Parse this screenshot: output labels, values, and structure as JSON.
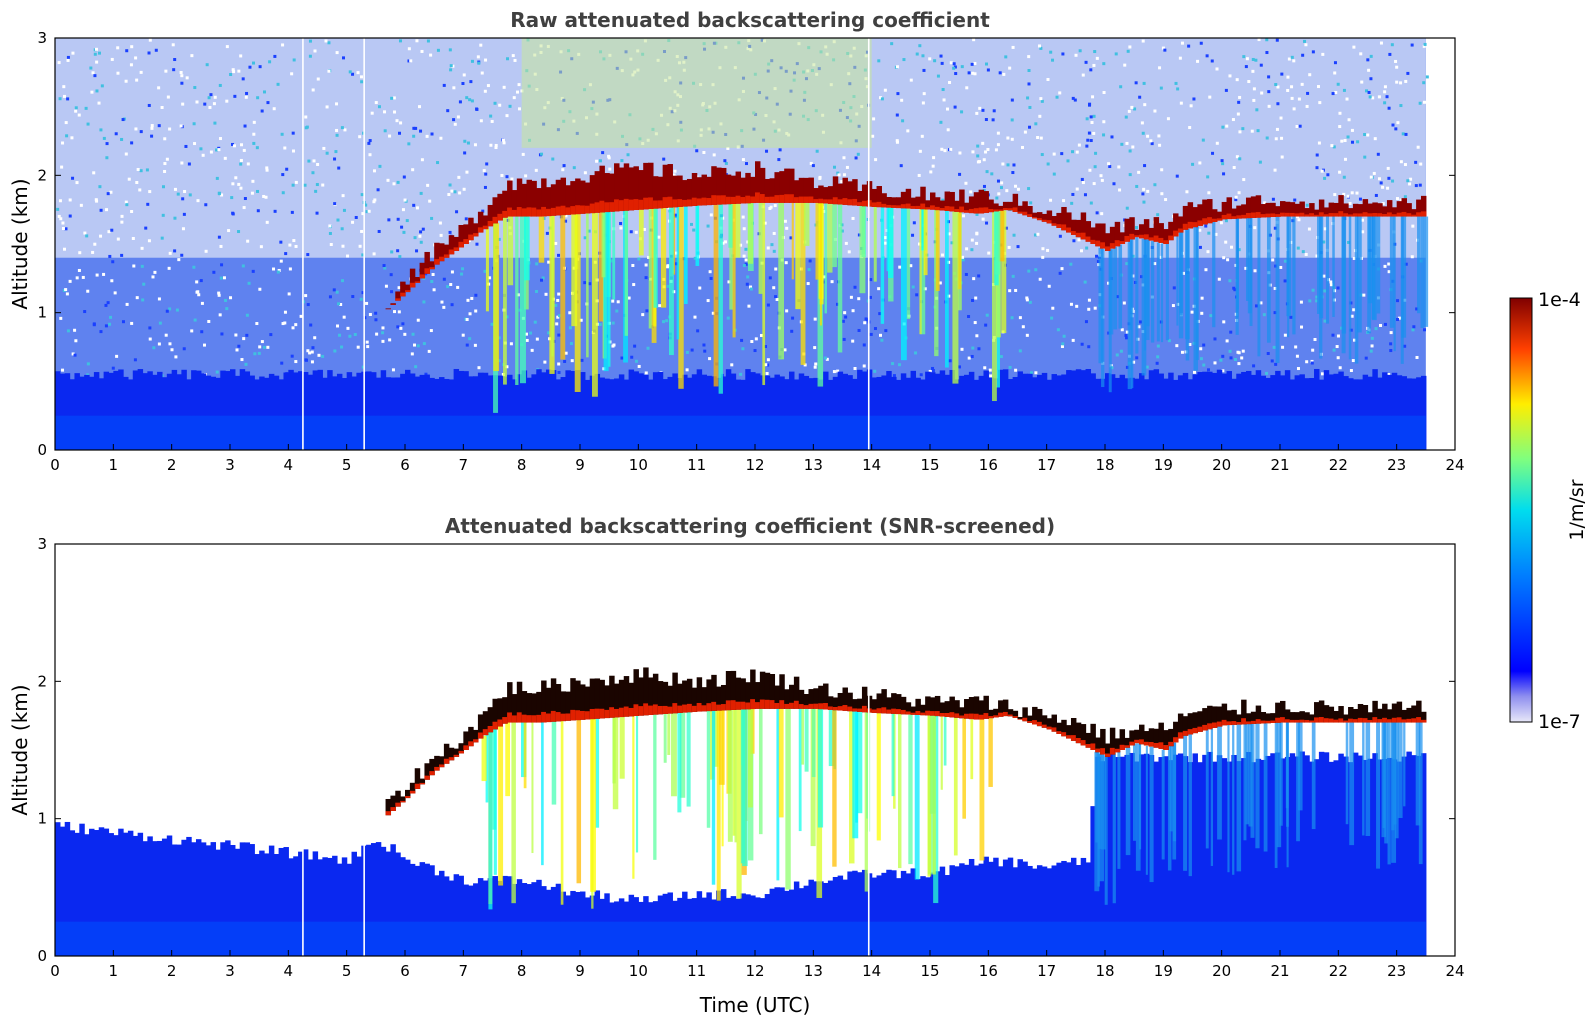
{
  "chart_data": {
    "type": "heatmap",
    "xlabel": "Time (UTC)",
    "ylabel": "Altitude (km)",
    "xlim": [
      0,
      24
    ],
    "ylim": [
      0,
      3
    ],
    "xticks": [
      "0",
      "1",
      "2",
      "3",
      "4",
      "5",
      "6",
      "7",
      "8",
      "9",
      "10",
      "11",
      "12",
      "13",
      "14",
      "15",
      "16",
      "17",
      "18",
      "19",
      "20",
      "21",
      "22",
      "23",
      "24"
    ],
    "yticks": [
      "0",
      "1",
      "2",
      "3"
    ],
    "data_end_time": 23.5,
    "missing_profiles": [
      4.25,
      5.3,
      13.95
    ],
    "cloud_base_km": [
      [
        5.6,
        1.0
      ],
      [
        6.0,
        1.15
      ],
      [
        6.5,
        1.35
      ],
      [
        7.0,
        1.5
      ],
      [
        7.3,
        1.6
      ],
      [
        7.7,
        1.7
      ],
      [
        8.3,
        1.7
      ],
      [
        9.0,
        1.72
      ],
      [
        10.0,
        1.75
      ],
      [
        11.0,
        1.78
      ],
      [
        12.0,
        1.8
      ],
      [
        13.0,
        1.8
      ],
      [
        14.0,
        1.77
      ],
      [
        15.0,
        1.75
      ],
      [
        15.8,
        1.72
      ],
      [
        16.3,
        1.75
      ],
      [
        17.0,
        1.65
      ],
      [
        17.5,
        1.55
      ],
      [
        18.0,
        1.45
      ],
      [
        18.5,
        1.55
      ],
      [
        19.0,
        1.5
      ],
      [
        19.3,
        1.6
      ],
      [
        20.0,
        1.68
      ],
      [
        21.0,
        1.7
      ],
      [
        22.0,
        1.7
      ],
      [
        23.0,
        1.7
      ],
      [
        23.5,
        1.7
      ]
    ],
    "cloud_top_km": [
      [
        5.6,
        1.05
      ],
      [
        6.0,
        1.25
      ],
      [
        6.5,
        1.45
      ],
      [
        7.0,
        1.62
      ],
      [
        7.3,
        1.75
      ],
      [
        7.7,
        1.95
      ],
      [
        8.3,
        1.95
      ],
      [
        9.0,
        2.0
      ],
      [
        10.0,
        2.05
      ],
      [
        11.0,
        2.0
      ],
      [
        12.0,
        2.05
      ],
      [
        13.0,
        1.95
      ],
      [
        14.0,
        1.9
      ],
      [
        15.0,
        1.85
      ],
      [
        15.8,
        1.85
      ],
      [
        16.3,
        1.82
      ],
      [
        17.0,
        1.75
      ],
      [
        17.5,
        1.7
      ],
      [
        18.0,
        1.6
      ],
      [
        18.5,
        1.65
      ],
      [
        19.0,
        1.65
      ],
      [
        19.3,
        1.75
      ],
      [
        20.0,
        1.8
      ],
      [
        21.0,
        1.82
      ],
      [
        22.0,
        1.8
      ],
      [
        23.0,
        1.8
      ],
      [
        23.5,
        1.8
      ]
    ],
    "panels": [
      {
        "title": "Raw attenuated backscattering coefficient",
        "screened": false
      },
      {
        "title": "Attenuated backscattering coefficient (SNR-screened)",
        "screened": true,
        "signal_top_km": [
          [
            0,
            0.95
          ],
          [
            1,
            0.9
          ],
          [
            2,
            0.85
          ],
          [
            3,
            0.8
          ],
          [
            4,
            0.75
          ],
          [
            5,
            0.7
          ],
          [
            5.5,
            0.85
          ],
          [
            6.0,
            0.7
          ],
          [
            7.0,
            0.55
          ],
          [
            8.0,
            0.55
          ],
          [
            9.0,
            0.45
          ],
          [
            10.0,
            0.4
          ],
          [
            11.0,
            0.45
          ],
          [
            12.0,
            0.45
          ],
          [
            13.0,
            0.55
          ],
          [
            14.0,
            0.6
          ],
          [
            15.0,
            0.6
          ],
          [
            16.0,
            0.7
          ],
          [
            17.0,
            0.65
          ],
          [
            17.7,
            0.7
          ],
          [
            17.8,
            1.45
          ],
          [
            23.5,
            1.45
          ]
        ]
      }
    ],
    "colorbar": {
      "label": "1/m/sr",
      "min_label": "1e-7",
      "max_label": "1e-4",
      "scale": "log",
      "colormap": "jet"
    }
  }
}
